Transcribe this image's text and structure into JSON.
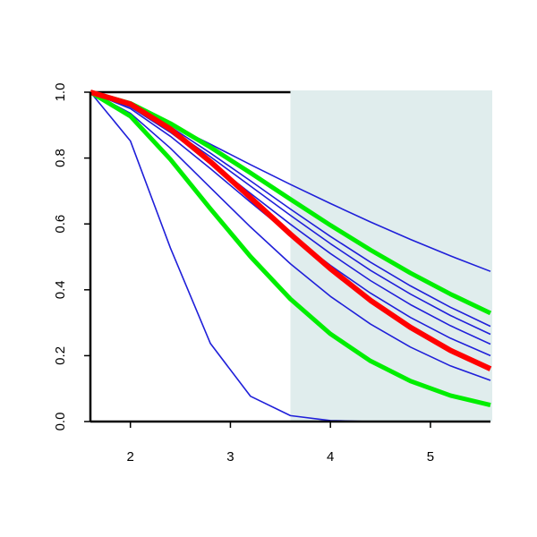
{
  "chart_data": {
    "type": "line",
    "x": [
      1.6,
      2.0,
      2.4,
      2.8,
      3.2,
      3.6,
      4.0,
      4.4,
      4.8,
      5.2,
      5.6
    ],
    "shaded_x": [
      3.6,
      5.6
    ],
    "shade_color": "#e0eded",
    "series": [
      {
        "color": "#1f1fd9",
        "width": 1.6,
        "values": [
          1,
          0.958,
          0.902,
          0.842,
          0.78,
          0.72,
          0.662,
          0.606,
          0.553,
          0.503,
          0.456
        ]
      },
      {
        "color": "#1f1fd9",
        "width": 1.6,
        "values": [
          1,
          0.962,
          0.895,
          0.815,
          0.731,
          0.645,
          0.562,
          0.484,
          0.412,
          0.347,
          0.289
        ]
      },
      {
        "color": "#1f1fd9",
        "width": 1.6,
        "values": [
          1,
          0.959,
          0.888,
          0.804,
          0.715,
          0.626,
          0.54,
          0.459,
          0.387,
          0.322,
          0.265
        ]
      },
      {
        "color": "#1f1fd9",
        "width": 1.6,
        "values": [
          1,
          0.955,
          0.878,
          0.788,
          0.693,
          0.599,
          0.51,
          0.428,
          0.355,
          0.291,
          0.235
        ]
      },
      {
        "color": "#1f1fd9",
        "width": 1.6,
        "values": [
          1,
          0.95,
          0.866,
          0.768,
          0.666,
          0.567,
          0.474,
          0.39,
          0.316,
          0.253,
          0.2
        ]
      },
      {
        "color": "#1f1fd9",
        "width": 1.6,
        "values": [
          1,
          0.936,
          0.83,
          0.71,
          0.591,
          0.479,
          0.38,
          0.296,
          0.226,
          0.169,
          0.125
        ]
      },
      {
        "color": "#1f1fd9",
        "width": 1.6,
        "values": [
          1,
          0.852,
          0.527,
          0.237,
          0.077,
          0.018,
          0.003,
          0,
          0,
          0,
          0
        ]
      },
      {
        "color": "#00ee00",
        "width": 5,
        "values": [
          1,
          0.966,
          0.905,
          0.833,
          0.755,
          0.675,
          0.596,
          0.521,
          0.451,
          0.387,
          0.329
        ]
      },
      {
        "color": "#00ee00",
        "width": 5,
        "values": [
          1,
          0.927,
          0.796,
          0.646,
          0.501,
          0.372,
          0.266,
          0.184,
          0.123,
          0.079,
          0.05
        ]
      },
      {
        "color": "#ff0000",
        "width": 6,
        "values": [
          1,
          0.964,
          0.888,
          0.789,
          0.68,
          0.569,
          0.464,
          0.368,
          0.286,
          0.216,
          0.16
        ]
      }
    ],
    "xlim": [
      1.6,
      5.6
    ],
    "ylim": [
      0,
      1
    ],
    "xticks": [
      2,
      3,
      4,
      5
    ],
    "yticks": [
      {
        "value": 0,
        "label": "0.0"
      },
      0.2,
      0.4,
      0.6,
      0.8,
      {
        "value": 1,
        "label": "1.0"
      }
    ]
  }
}
